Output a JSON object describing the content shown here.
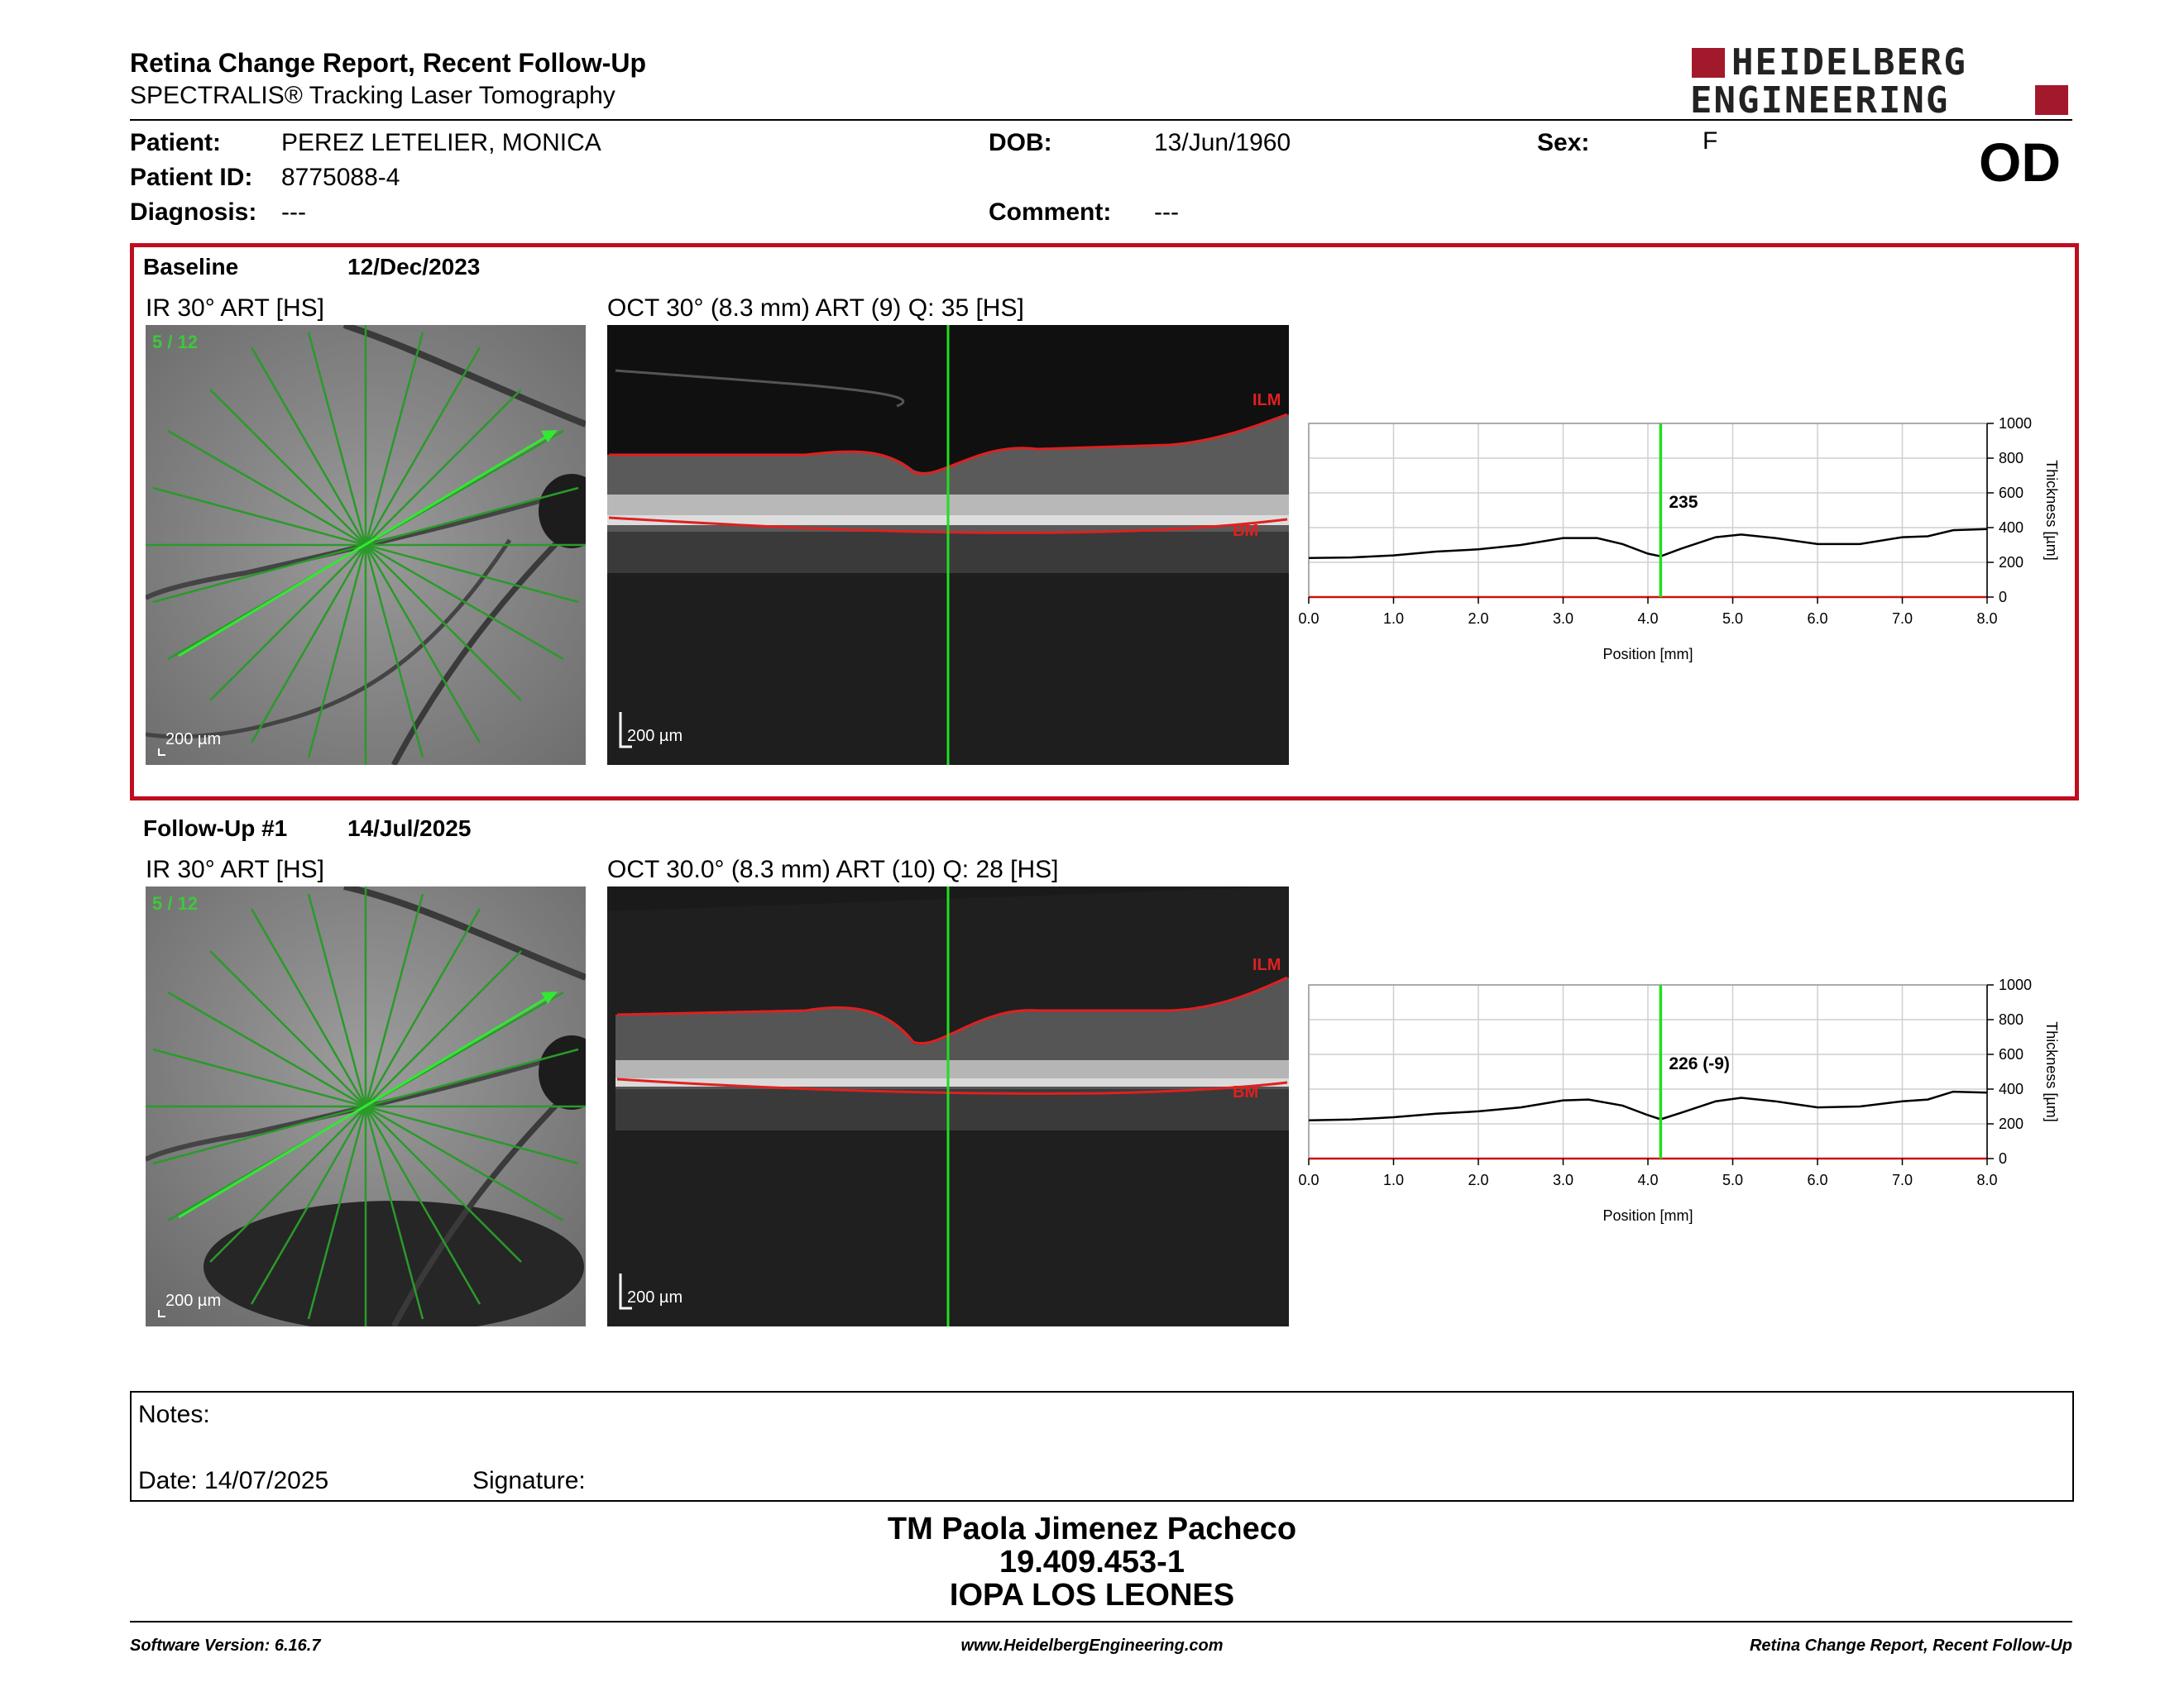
{
  "report": {
    "title": "Retina Change Report, Recent Follow-Up",
    "subtitle": "SPECTRALIS® Tracking Laser Tomography",
    "eye": "OD"
  },
  "logo": {
    "line1": "HEIDELBERG",
    "line2": "ENGINEERING",
    "brand_color": "#a3192c"
  },
  "patient": {
    "patient_label": "Patient:",
    "patient_value": "PEREZ LETELIER, MONICA",
    "id_label": "Patient ID:",
    "id_value": "8775088-4",
    "diag_label": "Diagnosis:",
    "diag_value": "---",
    "dob_label": "DOB:",
    "dob_value": "13/Jun/1960",
    "comment_label": "Comment:",
    "comment_value": "---",
    "sex_label": "Sex:",
    "sex_value": "F"
  },
  "baseline": {
    "label": "Baseline",
    "date": "12/Dec/2023",
    "ir_title": "IR 30° ART [HS]",
    "oct_title": "OCT 30° (8.3 mm) ART (9) Q: 35 [HS]",
    "scan_index": "5 / 12",
    "scale_label": "200 µm",
    "ilm": "ILM",
    "bm": "BM"
  },
  "followup": {
    "label": "Follow-Up #1",
    "date": "14/Jul/2025",
    "ir_title": "IR 30° ART [HS]",
    "oct_title": "OCT 30.0° (8.3 mm) ART (10) Q: 28 [HS]",
    "scan_index": "5 / 12",
    "scale_label": "200 µm",
    "ilm": "ILM",
    "bm": "BM"
  },
  "colors": {
    "frame_red": "#c00d1e",
    "marker_green": "#22dd22",
    "curve": "#000000"
  },
  "chart_data": [
    {
      "type": "line",
      "xlabel": "Position [mm]",
      "ylabel": "Thickness [µm]",
      "xlim": [
        0,
        8
      ],
      "ylim": [
        0,
        1000
      ],
      "xticks": [
        "0.0",
        "1.0",
        "2.0",
        "3.0",
        "4.0",
        "5.0",
        "6.0",
        "7.0",
        "8.0"
      ],
      "yticks": [
        "0",
        "200",
        "400",
        "600",
        "800",
        "1000"
      ],
      "grid": true,
      "marker_x": 4.15,
      "marker_label": "235",
      "x": [
        0,
        0.5,
        1,
        1.5,
        2,
        2.5,
        3,
        3.4,
        3.7,
        4.0,
        4.15,
        4.4,
        4.8,
        5.1,
        5.5,
        6,
        6.5,
        7,
        7.3,
        7.6,
        8
      ],
      "y": [
        225,
        228,
        240,
        262,
        275,
        300,
        340,
        340,
        305,
        250,
        235,
        280,
        345,
        360,
        340,
        305,
        305,
        345,
        350,
        385,
        392
      ]
    },
    {
      "type": "line",
      "xlabel": "Position [mm]",
      "ylabel": "Thickness [µm]",
      "xlim": [
        0,
        8
      ],
      "ylim": [
        0,
        1000
      ],
      "xticks": [
        "0.0",
        "1.0",
        "2.0",
        "3.0",
        "4.0",
        "5.0",
        "6.0",
        "7.0",
        "8.0"
      ],
      "yticks": [
        "0",
        "200",
        "400",
        "600",
        "800",
        "1000"
      ],
      "grid": true,
      "marker_x": 4.15,
      "marker_label": "226 (-9)",
      "x": [
        0,
        0.5,
        1,
        1.5,
        2,
        2.5,
        3,
        3.3,
        3.7,
        4.0,
        4.15,
        4.4,
        4.8,
        5.1,
        5.5,
        6,
        6.5,
        7,
        7.3,
        7.6,
        8
      ],
      "y": [
        220,
        225,
        238,
        258,
        272,
        295,
        335,
        340,
        305,
        250,
        226,
        265,
        330,
        350,
        330,
        295,
        300,
        330,
        340,
        385,
        380
      ]
    }
  ],
  "notes": {
    "label": "Notes:",
    "date_label": "Date: 14/07/2025",
    "signature_label": "Signature:"
  },
  "signature": {
    "name": "TM Paola Jimenez Pacheco",
    "rut": "19.409.453-1",
    "institution": "IOPA LOS LEONES"
  },
  "footer": {
    "left": "Software Version: 6.16.7",
    "center": "www.HeidelbergEngineering.com",
    "right": "Retina Change Report, Recent Follow-Up"
  }
}
